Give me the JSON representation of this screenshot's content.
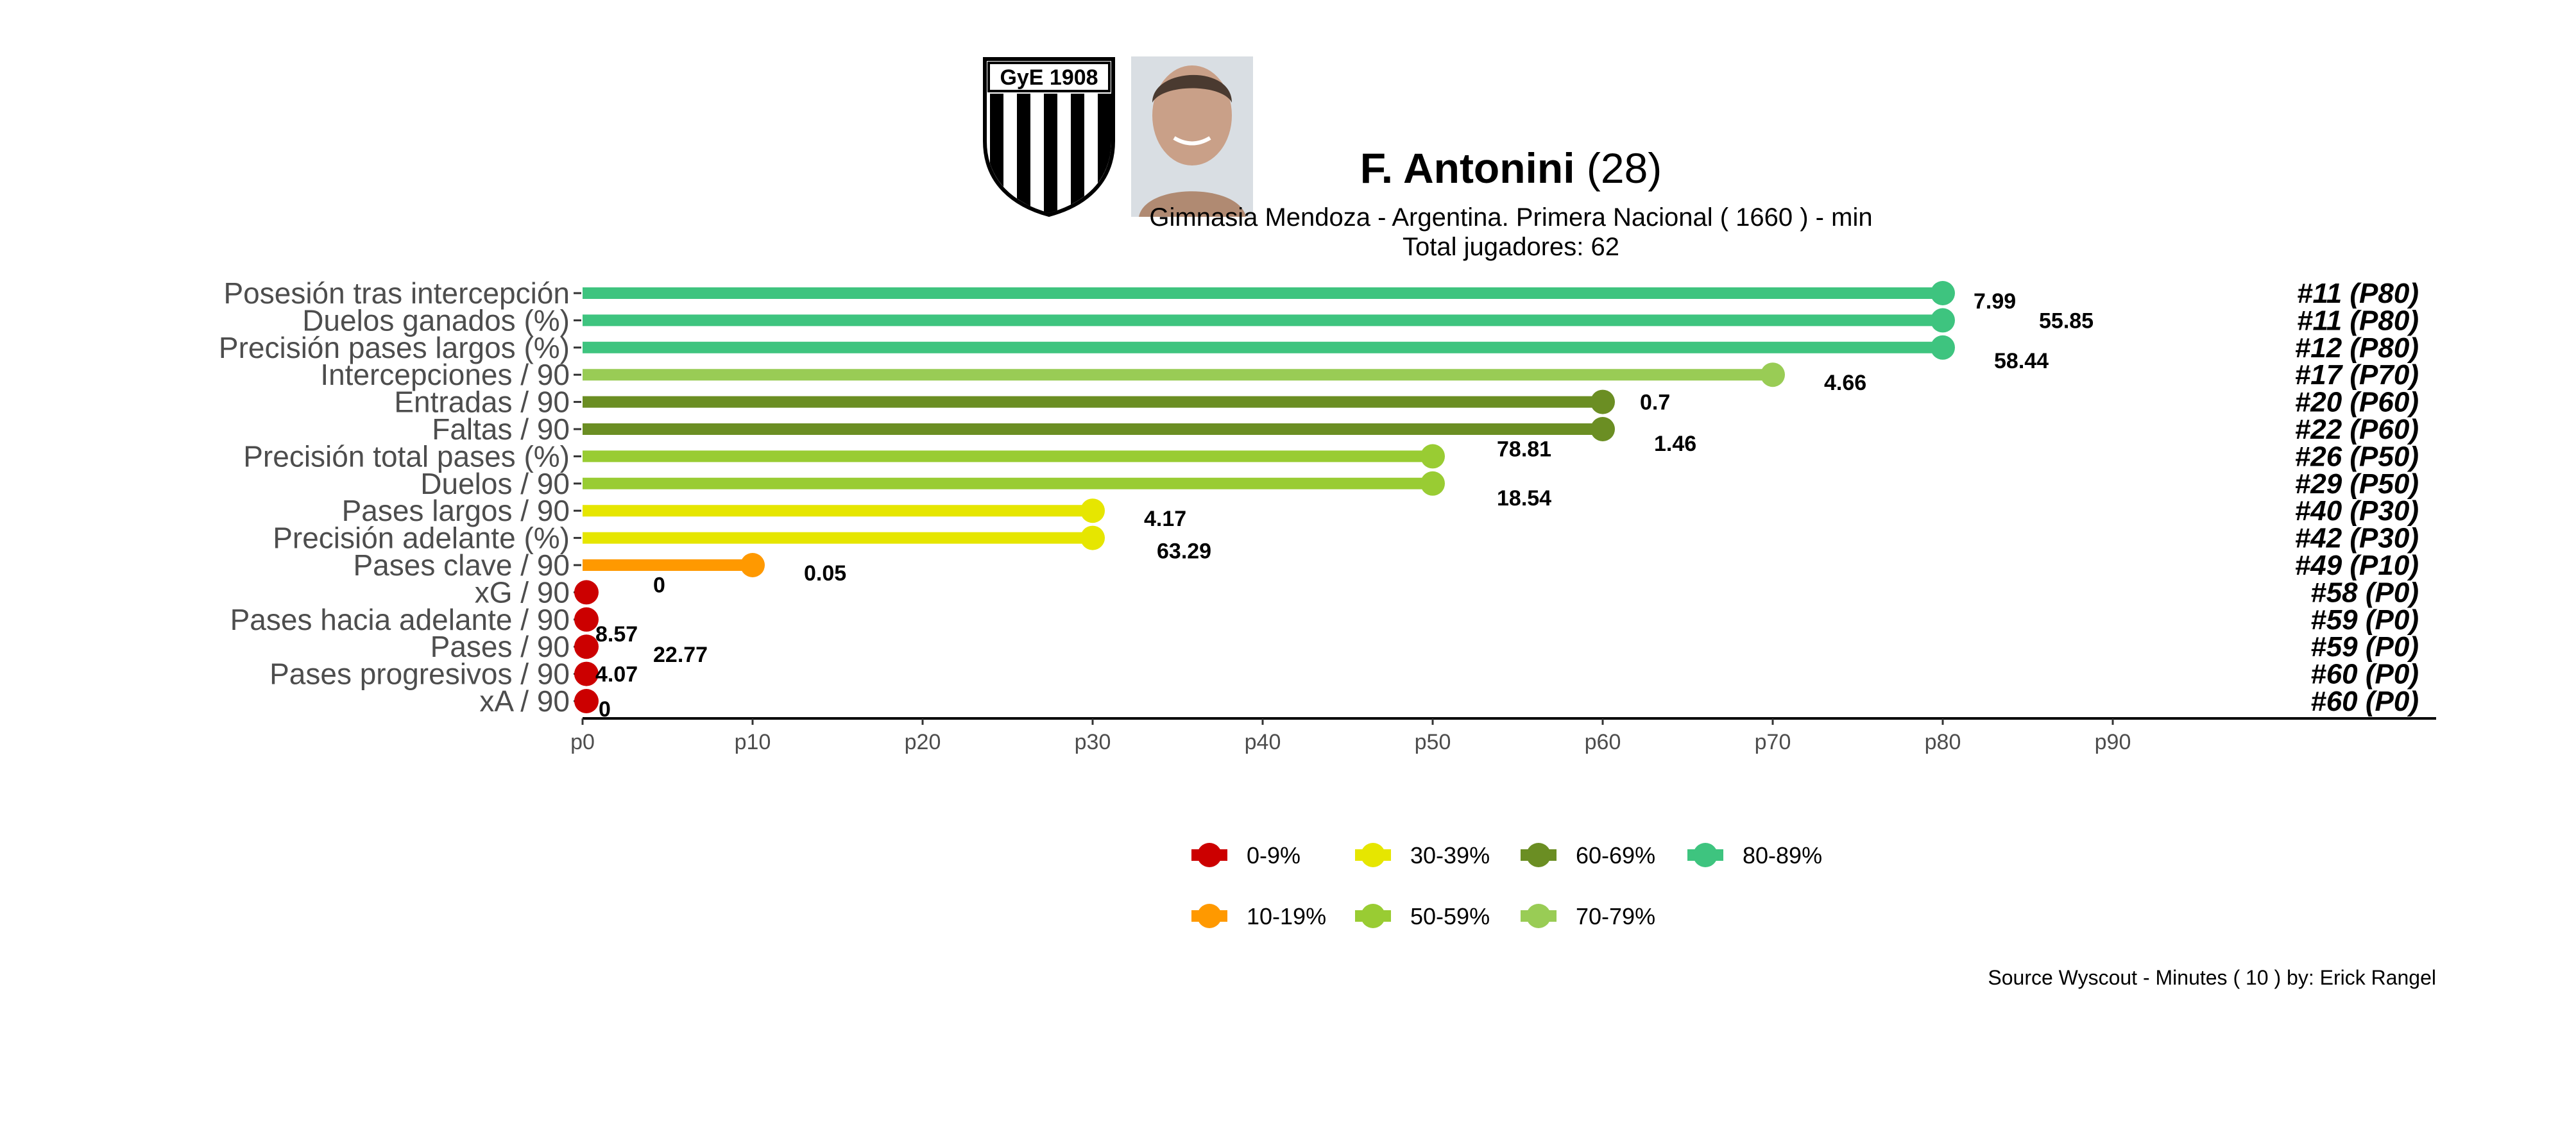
{
  "header": {
    "player_name": "F. Antonini",
    "player_age": "(28)",
    "subtitle": "Gimnasia Mendoza  -  Argentina. Primera Nacional  ( 1660 ) - min",
    "total_players": "Total jugadores:  62",
    "crest_text": "GyE 1908"
  },
  "footer": {
    "source": "Source Wyscout - Minutes ( 10 ) by: Erick Rangel"
  },
  "colors": {
    "0-9%": "#CC0000",
    "10-19%": "#FF9900",
    "30-39%": "#E6E600",
    "50-59%": "#99CC33",
    "60-69%": "#6B8E23",
    "70-79%": "#99CC55",
    "80-89%": "#3EC47F"
  },
  "chart_data": {
    "type": "lollipop",
    "x_ticks": [
      "p0",
      "p10",
      "p20",
      "p30",
      "p40",
      "p50",
      "p60",
      "p70",
      "p80",
      "p90"
    ],
    "xlim": [
      0,
      109
    ],
    "categories": [
      "Posesión tras intercepción",
      "Duelos ganados (%)",
      "Precisión pases largos (%)",
      "Intercepciones / 90",
      "Entradas / 90",
      "Faltas / 90",
      "Precisión total pases (%)",
      "Duelos / 90",
      "Pases largos / 90",
      "Precisión adelante (%)",
      "Pases clave / 90",
      "xG / 90",
      "Pases hacia adelante / 90",
      "Pases / 90",
      "Pases progresivos / 90",
      "xA / 90"
    ],
    "percentiles": [
      80,
      80,
      80,
      70,
      60,
      60,
      50,
      50,
      30,
      30,
      10,
      0,
      0,
      0,
      0,
      0
    ],
    "values": [
      "7.99",
      "55.85",
      "58.44",
      "4.66",
      "0.7",
      "1.46",
      "78.81",
      "18.54",
      "4.17",
      "63.29",
      "0.05",
      "0",
      "8.57",
      "22.77",
      "4.07",
      "0"
    ],
    "ranks": [
      "#11 (P80)",
      "#11 (P80)",
      "#12 (P80)",
      "#17 (P70)",
      "#20 (P60)",
      "#22 (P60)",
      "#26 (P50)",
      "#29 (P50)",
      "#40 (P30)",
      "#42 (P30)",
      "#49 (P10)",
      "#58 (P0)",
      "#59 (P0)",
      "#59 (P0)",
      "#60 (P0)",
      "#60 (P0)"
    ],
    "color_groups": [
      "80-89%",
      "80-89%",
      "80-89%",
      "70-79%",
      "60-69%",
      "60-69%",
      "50-59%",
      "50-59%",
      "30-39%",
      "30-39%",
      "10-19%",
      "0-9%",
      "0-9%",
      "0-9%",
      "0-9%",
      "0-9%"
    ],
    "legend": {
      "placement": "bottom",
      "row1": [
        "0-9%",
        "30-39%",
        "60-69%",
        "80-89%"
      ],
      "row2": [
        "10-19%",
        "50-59%",
        "70-79%"
      ]
    }
  }
}
